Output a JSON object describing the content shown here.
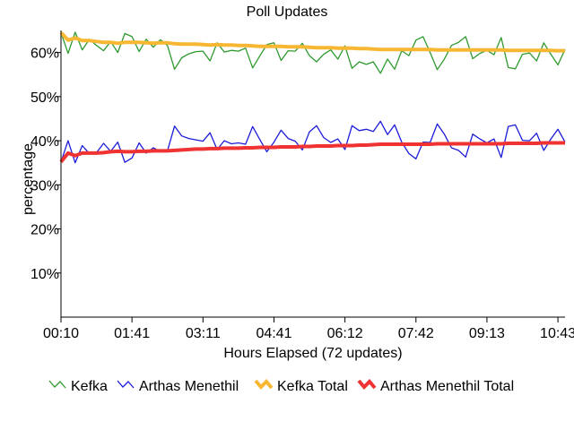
{
  "chart_data": {
    "type": "line",
    "title": "Poll Updates",
    "xlabel": "Hours Elapsed (72 updates)",
    "ylabel": "percentage",
    "x_tick_labels": [
      "00:10",
      "01:41",
      "03:11",
      "04:41",
      "06:12",
      "07:42",
      "09:13",
      "10:43"
    ],
    "y_tick_labels": [
      "10%",
      "20%",
      "30%",
      "40%",
      "50%",
      "60%"
    ],
    "y_ticks": [
      10,
      20,
      30,
      40,
      50,
      60
    ],
    "ylim": [
      0,
      65
    ],
    "n_points": 72,
    "grid": false,
    "legend_position": "bottom",
    "series": [
      {
        "name": "Kefka",
        "color": "#2e9a2e",
        "values": [
          64.5,
          59.8,
          64.6,
          60.6,
          63.0,
          61.6,
          60.4,
          62.5,
          60.0,
          64.3,
          63.6,
          60.2,
          63.0,
          61.2,
          62.9,
          61.6,
          56.2,
          58.8,
          59.7,
          60.2,
          60.3,
          58.1,
          62.2,
          60.1,
          60.5,
          60.3,
          61.0,
          56.5,
          59.2,
          61.8,
          62.2,
          58.2,
          60.4,
          60.3,
          62.1,
          59.3,
          57.9,
          59.6,
          60.6,
          58.5,
          61.5,
          56.4,
          57.9,
          57.3,
          57.9,
          55.3,
          58.5,
          56.2,
          60.4,
          59.3,
          62.8,
          63.6,
          60.0,
          56.1,
          58.5,
          61.6,
          62.3,
          63.6,
          58.6,
          59.8,
          60.5,
          59.5,
          63.4,
          56.6,
          56.3,
          59.6,
          59.9,
          58.1,
          62.2,
          59.6,
          57.2,
          60.7
        ]
      },
      {
        "name": "Arthas Menethil",
        "color": "#1c1cd9",
        "values": [
          35.2,
          40.0,
          35.0,
          38.9,
          37.1,
          37.3,
          39.4,
          37.6,
          39.7,
          35.1,
          36.1,
          39.5,
          37.2,
          38.4,
          37.5,
          37.7,
          43.3,
          41.1,
          40.5,
          40.2,
          39.9,
          41.8,
          38.0,
          40.0,
          39.3,
          39.5,
          39.2,
          43.2,
          40.3,
          37.5,
          39.7,
          42.4,
          40.5,
          39.9,
          37.9,
          42.0,
          43.4,
          40.7,
          39.6,
          40.4,
          38.0,
          43.4,
          42.3,
          42.6,
          42.1,
          44.4,
          41.4,
          43.6,
          39.7,
          37.1,
          35.9,
          39.7,
          39.6,
          43.8,
          41.5,
          38.4,
          37.8,
          36.3,
          41.5,
          40.4,
          39.5,
          40.4,
          36.2,
          43.2,
          43.6,
          40.1,
          40.0,
          41.7,
          37.8,
          40.4,
          42.6,
          39.7
        ]
      },
      {
        "name": "Kefka Total",
        "color": "#f7b733",
        "values": [
          64.5,
          62.8,
          63.3,
          62.7,
          62.7,
          62.5,
          62.3,
          62.3,
          62.1,
          62.3,
          62.3,
          62.3,
          62.2,
          62.1,
          62.2,
          62.2,
          62.0,
          61.9,
          61.9,
          61.9,
          61.8,
          61.7,
          61.8,
          61.7,
          61.7,
          61.6,
          61.6,
          61.5,
          61.4,
          61.4,
          61.4,
          61.4,
          61.3,
          61.3,
          61.3,
          61.2,
          61.1,
          61.1,
          61.1,
          61.0,
          61.0,
          61.0,
          60.9,
          60.9,
          60.8,
          60.7,
          60.7,
          60.7,
          60.7,
          60.7,
          60.7,
          60.7,
          60.7,
          60.6,
          60.6,
          60.6,
          60.6,
          60.6,
          60.6,
          60.6,
          60.6,
          60.6,
          60.6,
          60.5,
          60.5,
          60.5,
          60.5,
          60.5,
          60.5,
          60.5,
          60.4,
          60.4
        ]
      },
      {
        "name": "Arthas Menethil Total",
        "color": "#ef3333",
        "values": [
          35.2,
          37.2,
          36.6,
          37.2,
          37.2,
          37.2,
          37.3,
          37.5,
          37.6,
          37.5,
          37.5,
          37.6,
          37.6,
          37.7,
          37.7,
          37.7,
          37.8,
          37.9,
          38.0,
          38.1,
          38.1,
          38.2,
          38.2,
          38.3,
          38.3,
          38.3,
          38.4,
          38.4,
          38.5,
          38.5,
          38.5,
          38.6,
          38.6,
          38.6,
          38.7,
          38.7,
          38.8,
          38.8,
          38.8,
          38.9,
          38.9,
          38.9,
          39.0,
          39.0,
          39.1,
          39.2,
          39.2,
          39.2,
          39.2,
          39.2,
          39.2,
          39.2,
          39.2,
          39.3,
          39.3,
          39.3,
          39.3,
          39.3,
          39.3,
          39.3,
          39.3,
          39.3,
          39.3,
          39.4,
          39.4,
          39.4,
          39.4,
          39.4,
          39.5,
          39.5,
          39.5,
          39.5
        ]
      }
    ]
  }
}
